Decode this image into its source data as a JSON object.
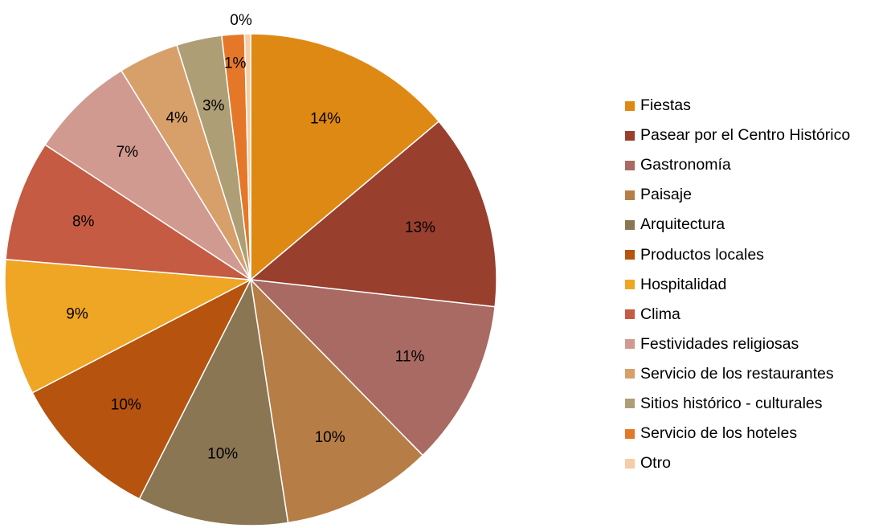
{
  "chart_data": {
    "type": "pie",
    "title": "",
    "slices": [
      {
        "label": "Fiestas",
        "value": 14,
        "display": "14%",
        "color": "#DE8914"
      },
      {
        "label": "Pasear por el Centro Histórico",
        "value": 13,
        "display": "13%",
        "color": "#983F2E"
      },
      {
        "label": "Gastronomía",
        "value": 11,
        "display": "11%",
        "color": "#A86A62"
      },
      {
        "label": "Paisaje",
        "value": 10,
        "display": "10%",
        "color": "#B77D46"
      },
      {
        "label": "Arquitectura",
        "value": 10,
        "display": "10%",
        "color": "#8A7653"
      },
      {
        "label": "Productos locales",
        "value": 10,
        "display": "10%",
        "color": "#B5530F"
      },
      {
        "label": "Hospitalidad",
        "value": 9,
        "display": "9%",
        "color": "#EFA624"
      },
      {
        "label": "Clima",
        "value": 8,
        "display": "8%",
        "color": "#C55B42"
      },
      {
        "label": "Festividades religiosas",
        "value": 7,
        "display": "7%",
        "color": "#D19A91"
      },
      {
        "label": "Servicio de los restaurantes",
        "value": 4,
        "display": "4%",
        "color": "#D7A06A"
      },
      {
        "label": "Sitios histórico - culturales",
        "value": 3,
        "display": "3%",
        "color": "#AD9E76"
      },
      {
        "label": "Servicio de los hoteles",
        "value": 1.5,
        "display": "1%",
        "color": "#E57828"
      },
      {
        "label": "Otro",
        "value": 0.4,
        "display": "0%",
        "color": "#F6CDA6"
      }
    ],
    "start_angle_deg": 0,
    "direction": "clockwise",
    "legend_position": "right"
  }
}
